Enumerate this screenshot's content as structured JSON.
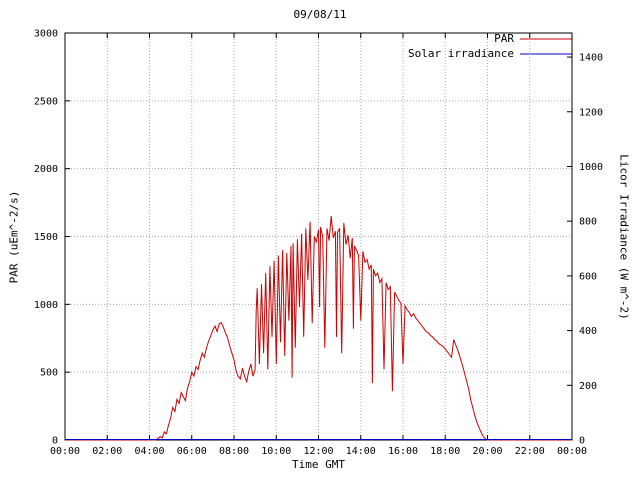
{
  "window": {
    "background": "#ffffff"
  },
  "colors": {
    "par_line": "#cc0000",
    "solar_line": "#0000cc",
    "grid": "#a8a8a8",
    "axis": "#000000"
  },
  "chart_data": {
    "type": "line",
    "title": "09/08/11",
    "xlabel": "Time GMT",
    "ylabel_left": "PAR (uEm^-2/s)",
    "ylabel_right": "Licor Irradiance (W m^-2)",
    "xlim": [
      0,
      24
    ],
    "ylim_left": [
      0,
      3000
    ],
    "ylim_right": [
      0,
      1488
    ],
    "grid": true,
    "legend_position": "top-right-inside",
    "x_ticks": [
      0,
      2,
      4,
      6,
      8,
      10,
      12,
      14,
      16,
      18,
      20,
      22,
      24
    ],
    "x_tick_labels": [
      "00:00",
      "02:00",
      "04:00",
      "06:00",
      "08:00",
      "10:00",
      "12:00",
      "14:00",
      "16:00",
      "18:00",
      "20:00",
      "22:00",
      "00:00"
    ],
    "y_ticks_left": [
      0,
      500,
      1000,
      1500,
      2000,
      2500,
      3000
    ],
    "y_tick_labels_left": [
      "0",
      "500",
      "1000",
      "1500",
      "2000",
      "2500",
      "3000"
    ],
    "y_ticks_right": [
      0,
      200,
      400,
      600,
      800,
      1000,
      1200,
      1400
    ],
    "y_tick_labels_right": [
      "0",
      "200",
      "400",
      "600",
      "800",
      "1000",
      "1200",
      "1400"
    ],
    "legend": [
      {
        "label": "PAR",
        "color": "#cc0000"
      },
      {
        "label": "Solar irradiance",
        "color": "#0000cc"
      }
    ],
    "series": [
      {
        "name": "PAR",
        "axis": "left",
        "color": "#cc0000",
        "points": [
          [
            0,
            0
          ],
          [
            4.3,
            0
          ],
          [
            4.4,
            10
          ],
          [
            4.5,
            25
          ],
          [
            4.6,
            15
          ],
          [
            4.7,
            60
          ],
          [
            4.8,
            45
          ],
          [
            4.9,
            110
          ],
          [
            5.0,
            160
          ],
          [
            5.1,
            240
          ],
          [
            5.2,
            210
          ],
          [
            5.3,
            300
          ],
          [
            5.4,
            270
          ],
          [
            5.5,
            350
          ],
          [
            5.6,
            320
          ],
          [
            5.7,
            290
          ],
          [
            5.8,
            380
          ],
          [
            5.9,
            430
          ],
          [
            6.0,
            500
          ],
          [
            6.1,
            470
          ],
          [
            6.2,
            540
          ],
          [
            6.3,
            520
          ],
          [
            6.4,
            590
          ],
          [
            6.5,
            640
          ],
          [
            6.6,
            610
          ],
          [
            6.7,
            680
          ],
          [
            6.8,
            730
          ],
          [
            6.9,
            770
          ],
          [
            7.0,
            810
          ],
          [
            7.1,
            840
          ],
          [
            7.2,
            800
          ],
          [
            7.3,
            855
          ],
          [
            7.4,
            865
          ],
          [
            7.5,
            830
          ],
          [
            7.6,
            790
          ],
          [
            7.7,
            750
          ],
          [
            7.8,
            690
          ],
          [
            7.9,
            640
          ],
          [
            8.0,
            590
          ],
          [
            8.1,
            510
          ],
          [
            8.2,
            470
          ],
          [
            8.3,
            450
          ],
          [
            8.4,
            530
          ],
          [
            8.5,
            470
          ],
          [
            8.6,
            430
          ],
          [
            8.7,
            510
          ],
          [
            8.8,
            560
          ],
          [
            8.9,
            470
          ],
          [
            9.0,
            520
          ],
          [
            9.05,
            950
          ],
          [
            9.1,
            1120
          ],
          [
            9.2,
            560
          ],
          [
            9.3,
            1150
          ],
          [
            9.4,
            640
          ],
          [
            9.5,
            1230
          ],
          [
            9.6,
            520
          ],
          [
            9.7,
            1280
          ],
          [
            9.8,
            760
          ],
          [
            9.9,
            1320
          ],
          [
            10.0,
            560
          ],
          [
            10.1,
            1360
          ],
          [
            10.2,
            720
          ],
          [
            10.3,
            1400
          ],
          [
            10.4,
            620
          ],
          [
            10.5,
            1380
          ],
          [
            10.6,
            880
          ],
          [
            10.7,
            1430
          ],
          [
            10.75,
            460
          ],
          [
            10.8,
            1450
          ],
          [
            10.9,
            680
          ],
          [
            11.0,
            1480
          ],
          [
            11.1,
            980
          ],
          [
            11.2,
            1520
          ],
          [
            11.3,
            760
          ],
          [
            11.4,
            1560
          ],
          [
            11.5,
            1180
          ],
          [
            11.6,
            1610
          ],
          [
            11.7,
            860
          ],
          [
            11.8,
            1500
          ],
          [
            11.9,
            1460
          ],
          [
            12.0,
            1550
          ],
          [
            12.05,
            980
          ],
          [
            12.1,
            1570
          ],
          [
            12.2,
            1500
          ],
          [
            12.3,
            680
          ],
          [
            12.4,
            1560
          ],
          [
            12.5,
            1470
          ],
          [
            12.6,
            1650
          ],
          [
            12.7,
            1490
          ],
          [
            12.8,
            1540
          ],
          [
            12.85,
            760
          ],
          [
            12.9,
            1530
          ],
          [
            13.0,
            1560
          ],
          [
            13.1,
            640
          ],
          [
            13.2,
            1600
          ],
          [
            13.3,
            1440
          ],
          [
            13.4,
            1510
          ],
          [
            13.5,
            1340
          ],
          [
            13.6,
            1490
          ],
          [
            13.65,
            820
          ],
          [
            13.7,
            1430
          ],
          [
            13.8,
            1400
          ],
          [
            13.9,
            1360
          ],
          [
            14.0,
            880
          ],
          [
            14.1,
            1390
          ],
          [
            14.2,
            1310
          ],
          [
            14.3,
            1330
          ],
          [
            14.4,
            1260
          ],
          [
            14.5,
            1290
          ],
          [
            14.55,
            420
          ],
          [
            14.6,
            1260
          ],
          [
            14.7,
            1210
          ],
          [
            14.8,
            1230
          ],
          [
            14.9,
            1160
          ],
          [
            15.0,
            1190
          ],
          [
            15.1,
            520
          ],
          [
            15.2,
            1160
          ],
          [
            15.3,
            1110
          ],
          [
            15.4,
            1130
          ],
          [
            15.5,
            360
          ],
          [
            15.6,
            1090
          ],
          [
            15.7,
            1060
          ],
          [
            15.8,
            1030
          ],
          [
            15.9,
            1010
          ],
          [
            16.0,
            560
          ],
          [
            16.1,
            990
          ],
          [
            16.2,
            960
          ],
          [
            16.3,
            940
          ],
          [
            16.4,
            910
          ],
          [
            16.5,
            930
          ],
          [
            16.6,
            900
          ],
          [
            16.7,
            880
          ],
          [
            16.8,
            860
          ],
          [
            16.9,
            840
          ],
          [
            17.0,
            820
          ],
          [
            17.1,
            800
          ],
          [
            17.2,
            790
          ],
          [
            17.3,
            770
          ],
          [
            17.4,
            760
          ],
          [
            17.5,
            740
          ],
          [
            17.6,
            730
          ],
          [
            17.7,
            710
          ],
          [
            17.8,
            700
          ],
          [
            17.9,
            690
          ],
          [
            18.0,
            670
          ],
          [
            18.1,
            650
          ],
          [
            18.2,
            630
          ],
          [
            18.3,
            610
          ],
          [
            18.4,
            740
          ],
          [
            18.5,
            700
          ],
          [
            18.6,
            660
          ],
          [
            18.7,
            610
          ],
          [
            18.8,
            560
          ],
          [
            18.9,
            500
          ],
          [
            19.0,
            440
          ],
          [
            19.1,
            380
          ],
          [
            19.2,
            300
          ],
          [
            19.3,
            240
          ],
          [
            19.4,
            180
          ],
          [
            19.5,
            130
          ],
          [
            19.6,
            90
          ],
          [
            19.7,
            55
          ],
          [
            19.8,
            25
          ],
          [
            19.9,
            8
          ],
          [
            20.0,
            0
          ],
          [
            24,
            0
          ]
        ]
      },
      {
        "name": "Solar irradiance",
        "axis": "right",
        "color": "#0000cc",
        "points": [
          [
            0,
            2
          ],
          [
            24,
            2
          ]
        ]
      }
    ]
  }
}
